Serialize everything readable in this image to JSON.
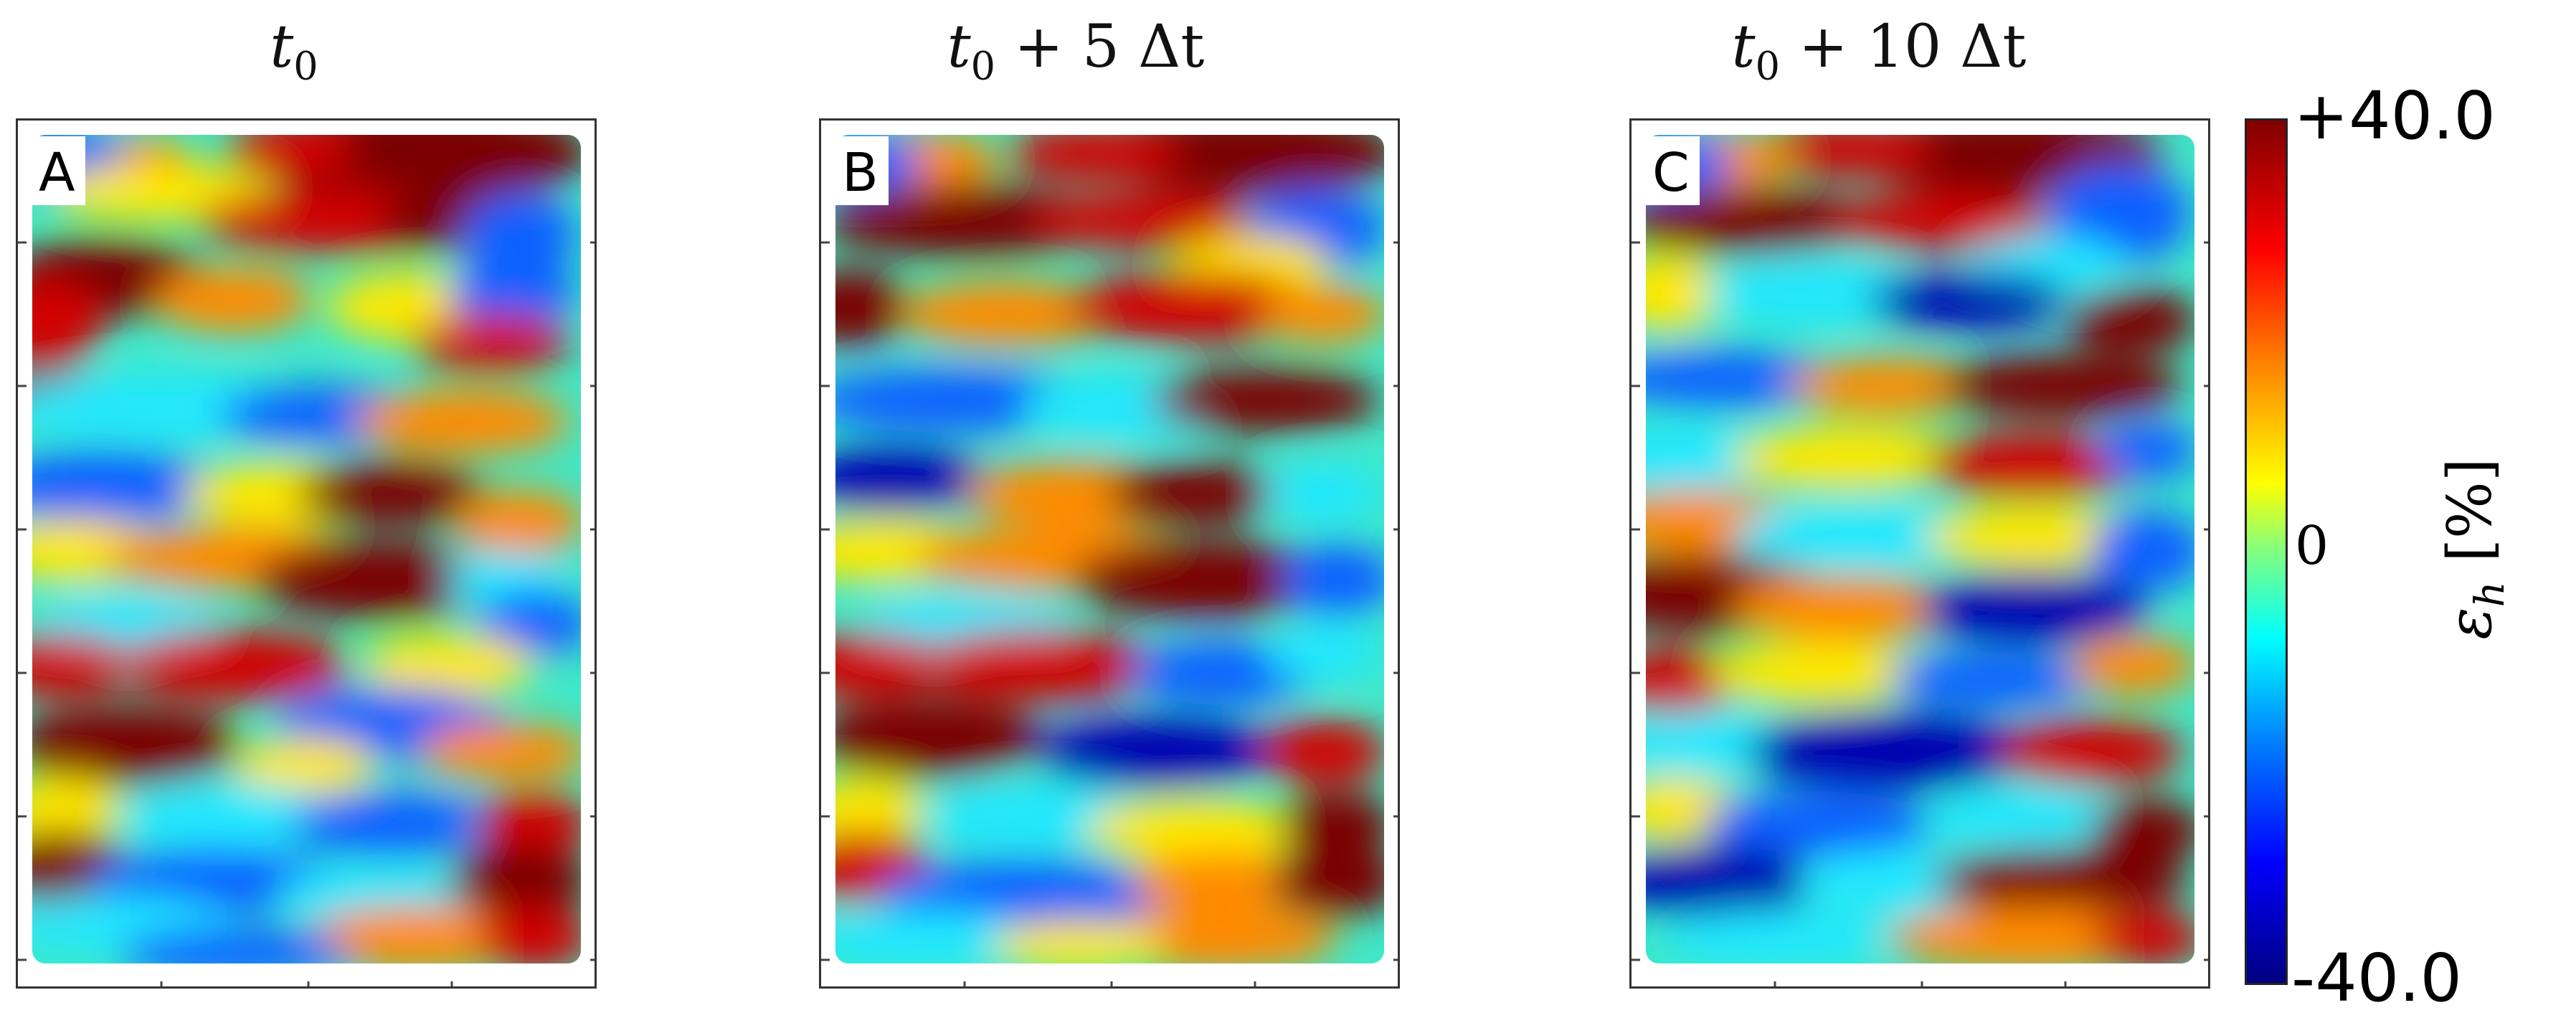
{
  "panels": [
    {
      "label": "A",
      "title_base": "t",
      "title_sub": "0",
      "title_rest": ""
    },
    {
      "label": "B",
      "title_base": "t",
      "title_sub": "0",
      "title_rest": " + 5 Δt"
    },
    {
      "label": "C",
      "title_base": "t",
      "title_sub": "0",
      "title_rest": " + 10 Δt"
    }
  ],
  "colorbar": {
    "max_label": "+40.0",
    "mid_label": "0",
    "min_label": "-40.0",
    "title_base": "ε",
    "title_sub": "h",
    "title_rest": " [%]"
  },
  "chart_data": {
    "type": "heatmap",
    "colormap": "jet",
    "value_range": [
      -40.0,
      40.0
    ],
    "panels": [
      "A",
      "B",
      "C"
    ]
  }
}
